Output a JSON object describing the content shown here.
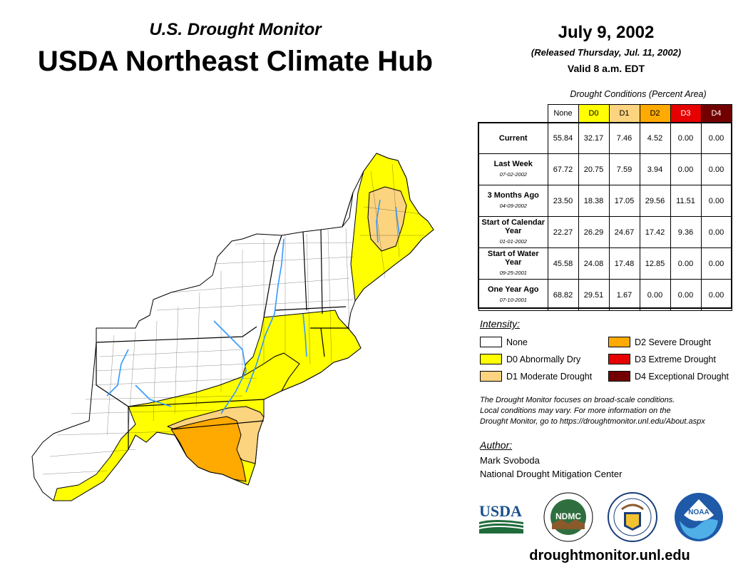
{
  "header": {
    "subtitle": "U.S. Drought Monitor",
    "title": "USDA Northeast Climate Hub",
    "date": "July 9, 2002",
    "released": "(Released Thursday, Jul. 11, 2002)",
    "valid": "Valid 8 a.m. EDT"
  },
  "table": {
    "caption": "Drought Conditions (Percent Area)",
    "columns": [
      {
        "label": "None",
        "color": "#ffffff",
        "text_color": "#000000"
      },
      {
        "label": "D0",
        "color": "#ffff00",
        "text_color": "#000000"
      },
      {
        "label": "D1",
        "color": "#fcd37f",
        "text_color": "#000000"
      },
      {
        "label": "D2",
        "color": "#ffaa00",
        "text_color": "#000000"
      },
      {
        "label": "D3",
        "color": "#e60000",
        "text_color": "#ffffff"
      },
      {
        "label": "D4",
        "color": "#730000",
        "text_color": "#ffffff"
      }
    ],
    "rows": [
      {
        "label": "Current",
        "date": "",
        "values": [
          "55.84",
          "32.17",
          "7.46",
          "4.52",
          "0.00",
          "0.00"
        ]
      },
      {
        "label": "Last Week",
        "date": "07-02-2002",
        "values": [
          "67.72",
          "20.75",
          "7.59",
          "3.94",
          "0.00",
          "0.00"
        ]
      },
      {
        "label": "3 Months Ago",
        "date": "04-09-2002",
        "values": [
          "23.50",
          "18.38",
          "17.05",
          "29.56",
          "11.51",
          "0.00"
        ]
      },
      {
        "label": "Start of Calendar Year",
        "date": "01-01-2002",
        "values": [
          "22.27",
          "26.29",
          "24.67",
          "17.42",
          "9.36",
          "0.00"
        ]
      },
      {
        "label": "Start of Water Year",
        "date": "09-25-2001",
        "values": [
          "45.58",
          "24.08",
          "17.48",
          "12.85",
          "0.00",
          "0.00"
        ]
      },
      {
        "label": "One Year Ago",
        "date": "07-10-2001",
        "values": [
          "68.82",
          "29.51",
          "1.67",
          "0.00",
          "0.00",
          "0.00"
        ]
      }
    ]
  },
  "legend": {
    "title": "Intensity:",
    "items": [
      {
        "label": "None",
        "color": "#ffffff"
      },
      {
        "label": "D0 Abnormally Dry",
        "color": "#ffff00"
      },
      {
        "label": "D1 Moderate Drought",
        "color": "#fcd37f"
      },
      {
        "label": "D2 Severe Drought",
        "color": "#ffaa00"
      },
      {
        "label": "D3 Extreme Drought",
        "color": "#e60000"
      },
      {
        "label": "D4 Exceptional Drought",
        "color": "#730000"
      }
    ]
  },
  "note": {
    "line1": "The Drought Monitor focuses on broad-scale conditions.",
    "line2": "Local conditions may vary. For more information on the",
    "line3": "Drought Monitor, go to https://droughtmonitor.unl.edu/About.aspx"
  },
  "author": {
    "title": "Author:",
    "name": "Mark Svoboda",
    "org": "National Drought Mitigation Center"
  },
  "logos": {
    "usda": "USDA",
    "ndmc": "NDMC",
    "noaa": "NOAA"
  },
  "footer": {
    "url": "droughtmonitor.unl.edu"
  },
  "map": {
    "colors": {
      "none": "#ffffff",
      "d0": "#ffff00",
      "d1": "#fcd37f",
      "d2": "#ffaa00",
      "water": "#3399ff"
    }
  }
}
